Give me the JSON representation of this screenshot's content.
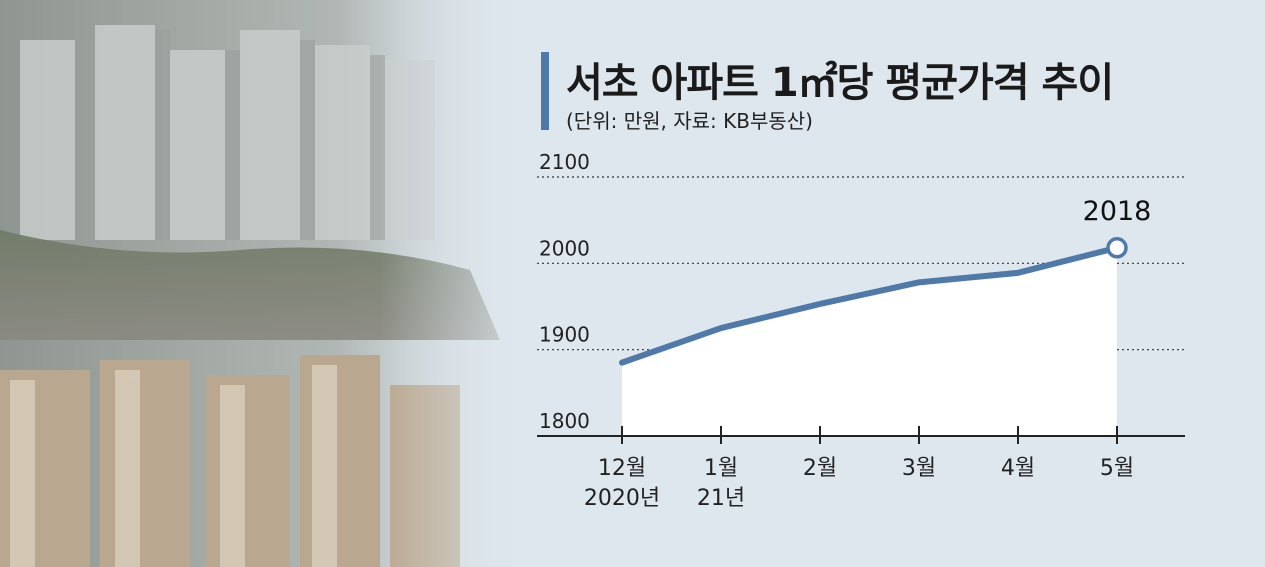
{
  "header": {
    "title": "서초 아파트 1㎡당 평균가격 추이",
    "subtitle": "(단위: 만원, 자료: KB부동산)"
  },
  "colors": {
    "accent": "#4f79a8",
    "line": "#4f79a8",
    "area": "#ffffff",
    "background": "#dfe7ee"
  },
  "chart_data": {
    "type": "area",
    "title": "서초 아파트 1㎡당 평균가격 추이",
    "subtitle": "(단위: 만원, 자료: KB부동산)",
    "categories": [
      "12월\n2020년",
      "1월\n21년",
      "2월",
      "3월",
      "4월",
      "5월"
    ],
    "category_lines": [
      [
        "12월",
        "2020년"
      ],
      [
        "1월",
        "21년"
      ],
      [
        "2월"
      ],
      [
        "3월"
      ],
      [
        "4월"
      ],
      [
        "5월"
      ]
    ],
    "series": [
      {
        "values": [
          1885,
          1925,
          1953,
          1978,
          1989,
          2018
        ]
      }
    ],
    "yticks": [
      1800,
      1900,
      2000,
      2100
    ],
    "ylim": [
      1800,
      2100
    ],
    "grid": "dotted horizontal",
    "callout": {
      "index": 5,
      "label": "2018"
    }
  }
}
